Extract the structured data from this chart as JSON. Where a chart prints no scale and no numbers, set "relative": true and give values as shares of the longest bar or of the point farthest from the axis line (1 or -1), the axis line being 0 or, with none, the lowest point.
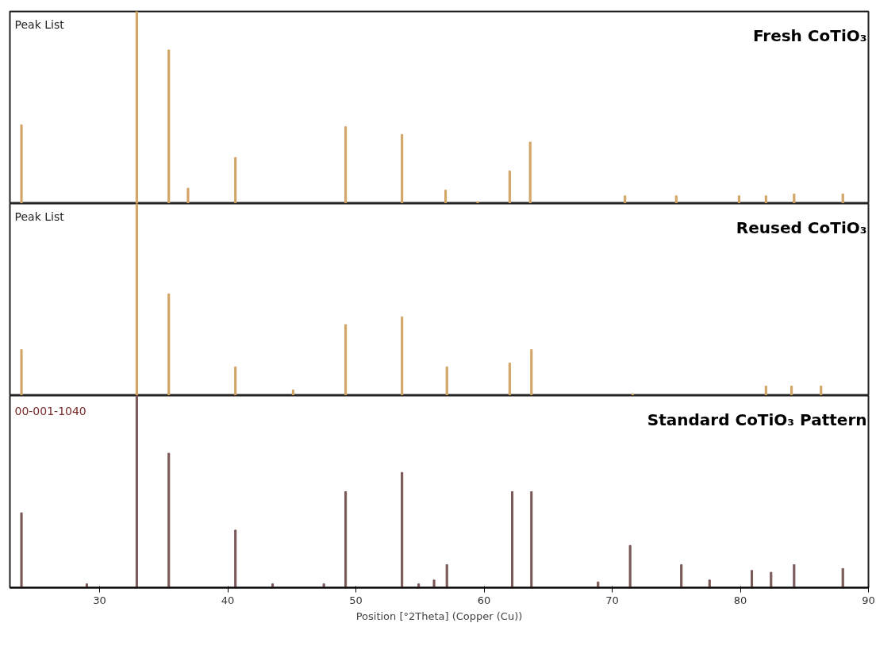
{
  "chart_data": [
    {
      "type": "bar",
      "title": "Fresh CoTiO₃",
      "relative": true,
      "xlim": [
        23,
        90
      ],
      "tick_labels": false,
      "grid": false,
      "annotations": [
        "Peak List"
      ],
      "series": [
        {
          "color": "#d2a464",
          "x": [
            23.9,
            32.9,
            35.4,
            36.9,
            40.6,
            49.2,
            53.6,
            57.0,
            59.5,
            62.0,
            63.6,
            71.0,
            75.0,
            79.9,
            82.0,
            84.2,
            88.0
          ],
          "values": [
            0.41,
            1.0,
            0.8,
            0.08,
            0.24,
            0.4,
            0.36,
            0.07,
            0.01,
            0.17,
            0.32,
            0.04,
            0.04,
            0.04,
            0.04,
            0.05,
            0.05
          ]
        }
      ]
    },
    {
      "type": "bar",
      "title": "Reused CoTiO₃",
      "relative": true,
      "xlim": [
        23,
        90
      ],
      "tick_labels": false,
      "grid": false,
      "annotations": [
        "Peak List"
      ],
      "series": [
        {
          "color": "#d2a464",
          "x": [
            23.9,
            32.9,
            35.4,
            40.6,
            45.1,
            49.2,
            53.6,
            57.1,
            62.0,
            63.7,
            71.6,
            82.0,
            84.0,
            86.3
          ],
          "values": [
            0.24,
            1.0,
            0.53,
            0.15,
            0.03,
            0.37,
            0.41,
            0.15,
            0.17,
            0.24,
            0.01,
            0.05,
            0.05,
            0.05
          ]
        }
      ]
    },
    {
      "type": "bar",
      "title": "Standard CoTiO₃ Pattern",
      "relative": true,
      "xlim": [
        23,
        90
      ],
      "xticks": [
        30,
        40,
        50,
        60,
        70,
        80,
        90
      ],
      "tick_labels": "x",
      "grid": false,
      "xlabel": "Position [°2Theta] (Copper (Cu))",
      "annotations": [
        "00-001-1040"
      ],
      "series": [
        {
          "color": "#7a5858",
          "x": [
            23.9,
            29.0,
            32.9,
            35.4,
            40.6,
            43.5,
            47.5,
            49.2,
            53.6,
            54.9,
            56.1,
            57.1,
            62.2,
            63.7,
            68.9,
            71.4,
            75.4,
            77.6,
            80.9,
            82.4,
            84.2,
            88.0
          ],
          "values": [
            0.39,
            0.02,
            1.0,
            0.7,
            0.3,
            0.02,
            0.02,
            0.5,
            0.6,
            0.02,
            0.04,
            0.12,
            0.5,
            0.5,
            0.03,
            0.22,
            0.12,
            0.04,
            0.09,
            0.08,
            0.12,
            0.1
          ]
        }
      ]
    }
  ]
}
